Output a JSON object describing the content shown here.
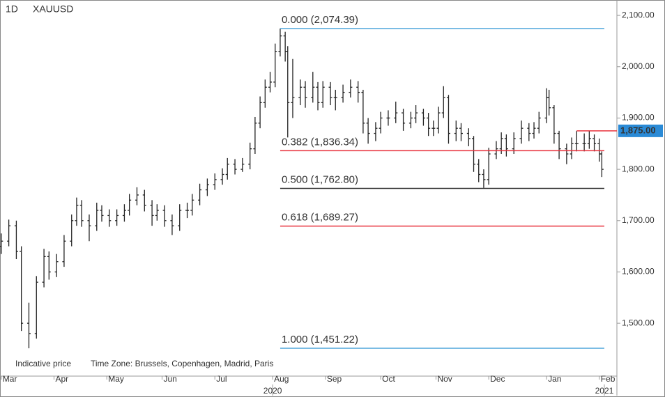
{
  "chart_data": {
    "type": "ohlc",
    "interval": "1D",
    "symbol": "XAUUSD",
    "footnote": "Indicative price",
    "timezone": "Time Zone: Brussels, Copenhagen, Madrid, Paris",
    "x": [
      0,
      3,
      6,
      8,
      11,
      14,
      17,
      19,
      22,
      25,
      28,
      30,
      32,
      35,
      38,
      40,
      43,
      46,
      49,
      51,
      54,
      57,
      60,
      62,
      65,
      68,
      71,
      74,
      76,
      79,
      82,
      85,
      88,
      90,
      93,
      96,
      99,
      101,
      103,
      105,
      107,
      109,
      111,
      113,
      114,
      116,
      119,
      121,
      124,
      126,
      128,
      131,
      133,
      136,
      139,
      142,
      144,
      146,
      149,
      151,
      154,
      157,
      160,
      163,
      165,
      168,
      170,
      172,
      174,
      176,
      178,
      181,
      183,
      186,
      188,
      190,
      192,
      194,
      197,
      199,
      201,
      204,
      207,
      210,
      212,
      214,
      217,
      218,
      220,
      222,
      225,
      227,
      229,
      232,
      234,
      236,
      238,
      239
    ],
    "open": [
      1650,
      1660,
      1690,
      1640,
      1500,
      1480,
      1580,
      1630,
      1600,
      1620,
      1660,
      1700,
      1730,
      1700,
      1690,
      1720,
      1710,
      1700,
      1710,
      1720,
      1740,
      1750,
      1730,
      1710,
      1720,
      1700,
      1690,
      1720,
      1720,
      1740,
      1760,
      1770,
      1780,
      1790,
      1810,
      1800,
      1810,
      1840,
      1890,
      1930,
      1960,
      1970,
      2030,
      2060,
      2030,
      1930,
      1940,
      1960,
      1940,
      1960,
      1930,
      1960,
      1940,
      1940,
      1950,
      1960,
      1950,
      1890,
      1870,
      1880,
      1900,
      1900,
      1910,
      1890,
      1900,
      1910,
      1900,
      1880,
      1880,
      1910,
      1940,
      1870,
      1880,
      1870,
      1860,
      1810,
      1790,
      1780,
      1830,
      1840,
      1860,
      1840,
      1860,
      1880,
      1870,
      1880,
      1900,
      1940,
      1920,
      1870,
      1840,
      1830,
      1850,
      1850,
      1850,
      1860,
      1850,
      1830
    ],
    "high": [
      1675,
      1702,
      1700,
      1650,
      1540,
      1592,
      1645,
      1640,
      1635,
      1672,
      1712,
      1745,
      1740,
      1712,
      1735,
      1730,
      1722,
      1722,
      1732,
      1752,
      1765,
      1760,
      1740,
      1732,
      1730,
      1712,
      1732,
      1735,
      1752,
      1772,
      1782,
      1792,
      1802,
      1822,
      1820,
      1822,
      1852,
      1902,
      1942,
      1975,
      1990,
      2045,
      2074.39,
      2068,
      2040,
      2015,
      1975,
      1972,
      1990,
      1970,
      1972,
      1970,
      1955,
      1965,
      1975,
      1972,
      1955,
      1900,
      1892,
      1912,
      1915,
      1932,
      1918,
      1912,
      1925,
      1918,
      1910,
      1895,
      1922,
      1962,
      1945,
      1895,
      1890,
      1880,
      1865,
      1820,
      1800,
      1842,
      1855,
      1872,
      1868,
      1872,
      1895,
      1890,
      1892,
      1912,
      1958,
      1955,
      1925,
      1875,
      1850,
      1862,
      1875,
      1870,
      1875,
      1868,
      1860,
      1835
    ],
    "low": [
      1635,
      1650,
      1625,
      1485,
      1451.22,
      1470,
      1570,
      1585,
      1590,
      1610,
      1650,
      1690,
      1688,
      1660,
      1680,
      1698,
      1688,
      1690,
      1698,
      1710,
      1730,
      1718,
      1690,
      1700,
      1688,
      1672,
      1680,
      1705,
      1710,
      1730,
      1748,
      1760,
      1770,
      1780,
      1790,
      1795,
      1800,
      1830,
      1880,
      1920,
      1950,
      1960,
      2020,
      2010,
      1862,
      1900,
      1925,
      1920,
      1930,
      1915,
      1920,
      1925,
      1915,
      1930,
      1940,
      1930,
      1870,
      1850,
      1855,
      1870,
      1885,
      1890,
      1875,
      1880,
      1890,
      1885,
      1865,
      1865,
      1870,
      1900,
      1850,
      1855,
      1855,
      1845,
      1795,
      1775,
      1763.8,
      1770,
      1820,
      1830,
      1825,
      1830,
      1850,
      1855,
      1860,
      1870,
      1890,
      1905,
      1850,
      1820,
      1810,
      1820,
      1835,
      1835,
      1840,
      1835,
      1815,
      1785
    ],
    "close": [
      1660,
      1690,
      1640,
      1500,
      1480,
      1580,
      1630,
      1600,
      1620,
      1660,
      1700,
      1730,
      1700,
      1690,
      1720,
      1710,
      1700,
      1710,
      1720,
      1740,
      1750,
      1730,
      1710,
      1720,
      1700,
      1690,
      1720,
      1720,
      1740,
      1760,
      1770,
      1780,
      1790,
      1810,
      1800,
      1810,
      1840,
      1890,
      1930,
      1960,
      1970,
      2030,
      2060,
      2030,
      1930,
      1940,
      1960,
      1940,
      1960,
      1930,
      1960,
      1940,
      1940,
      1950,
      1960,
      1950,
      1890,
      1870,
      1880,
      1900,
      1900,
      1910,
      1890,
      1900,
      1910,
      1900,
      1880,
      1880,
      1910,
      1940,
      1870,
      1880,
      1870,
      1860,
      1810,
      1790,
      1780,
      1830,
      1840,
      1860,
      1840,
      1860,
      1880,
      1870,
      1880,
      1900,
      1940,
      1920,
      1870,
      1840,
      1830,
      1850,
      1850,
      1850,
      1860,
      1850,
      1830,
      1800
    ],
    "color": "#222222",
    "xlim": [
      -0.5,
      245
    ],
    "ylim": [
      1397,
      2130
    ],
    "yticks": [
      {
        "value": 1500,
        "label": "1,500.00"
      },
      {
        "value": 1600,
        "label": "1,600.00"
      },
      {
        "value": 1700,
        "label": "1,700.00"
      },
      {
        "value": 1800,
        "label": "1,800.00"
      },
      {
        "value": 1900,
        "label": "1,900.00"
      },
      {
        "value": 2000,
        "label": "2,000.00"
      },
      {
        "value": 2100,
        "label": "2,100.00"
      }
    ],
    "xticks": [
      {
        "value": 0,
        "label": "Mar"
      },
      {
        "value": 21,
        "label": "Apr"
      },
      {
        "value": 42,
        "label": "May"
      },
      {
        "value": 64,
        "label": "Jun"
      },
      {
        "value": 85,
        "label": "Jul"
      },
      {
        "value": 108,
        "label": "Aug"
      },
      {
        "value": 129,
        "label": "Sep"
      },
      {
        "value": 151,
        "label": "Oct"
      },
      {
        "value": 173,
        "label": "Nov"
      },
      {
        "value": 194,
        "label": "Dec"
      },
      {
        "value": 217,
        "label": "Jan"
      },
      {
        "value": 238,
        "label": "Feb"
      }
    ],
    "year_ticks": [
      {
        "value": 108,
        "label": "2020"
      },
      {
        "value": 240,
        "label": "2021"
      }
    ],
    "fib_start": 111,
    "fib_end": 240,
    "fib_levels": [
      {
        "label": "0.000 (2,074.39)",
        "value": 2074.39,
        "color": "#4ea6dc"
      },
      {
        "label": "0.382 (1,836.34)",
        "value": 1836.34,
        "color": "#e8323c"
      },
      {
        "label": "0.500 (1,762.80)",
        "value": 1762.8,
        "color": "#333333"
      },
      {
        "label": "0.618 (1,689.27)",
        "value": 1689.27,
        "color": "#e8323c"
      },
      {
        "label": "1.000 (1,451.22)",
        "value": 1451.22,
        "color": "#4ea6dc"
      }
    ],
    "last_price": {
      "value": 1875,
      "label": "1,875.00",
      "start": 229,
      "color": "#e8323c",
      "box_color": "#2a8ad6"
    }
  }
}
